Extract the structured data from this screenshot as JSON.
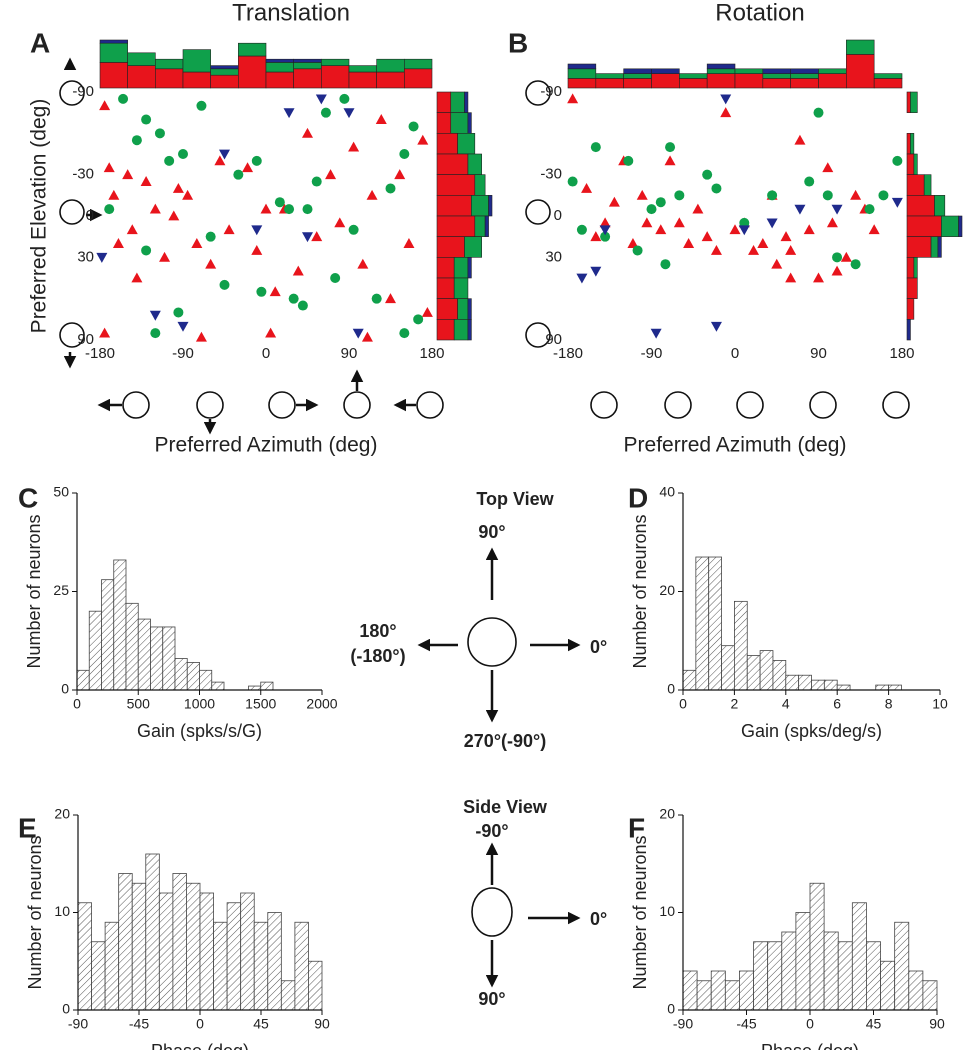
{
  "figure": {
    "top_view": {
      "title": "Top View",
      "labels": [
        "90°",
        "180°",
        "(-180°)",
        "0°",
        "270°(-90°)"
      ]
    },
    "side_view": {
      "title": "Side  View",
      "labels": [
        "-90°",
        "0°",
        "90°"
      ]
    }
  },
  "chart_data": [
    {
      "type": "scatter",
      "panel": "A",
      "title": "Translation",
      "xlabel": "Preferred Azimuth (deg)",
      "ylabel": "Preferred Elevation (deg)",
      "xlim": [
        -180,
        180
      ],
      "ylim": [
        90,
        -90
      ],
      "xticks": [
        -180,
        -90,
        0,
        90,
        180
      ],
      "yticks": [
        -90,
        -30,
        0,
        30,
        90
      ],
      "series": [
        {
          "color": "#e8141c",
          "marker": "triangle-up",
          "x": [
            -175,
            -170,
            -165,
            -160,
            -150,
            -145,
            -140,
            -130,
            -120,
            -110,
            -100,
            -95,
            -85,
            -75,
            -60,
            -50,
            -40,
            -20,
            -10,
            0,
            10,
            20,
            35,
            45,
            55,
            70,
            80,
            95,
            105,
            115,
            125,
            135,
            145,
            155,
            170,
            175,
            -175,
            -70,
            5,
            110
          ],
          "values": [
            -80,
            -35,
            -15,
            20,
            -30,
            10,
            45,
            -25,
            -5,
            30,
            0,
            -20,
            -15,
            20,
            35,
            -40,
            10,
            -35,
            25,
            -5,
            55,
            -5,
            40,
            -60,
            15,
            -30,
            5,
            -50,
            35,
            -15,
            -70,
            60,
            -30,
            20,
            -55,
            70,
            85,
            88,
            85,
            88
          ]
        },
        {
          "color": "#0fa04b",
          "marker": "circle",
          "x": [
            -155,
            -130,
            -115,
            -140,
            -170,
            -130,
            -105,
            -95,
            -90,
            -70,
            -60,
            -45,
            -30,
            -10,
            -5,
            15,
            25,
            30,
            45,
            55,
            65,
            75,
            85,
            95,
            120,
            135,
            150,
            160,
            165,
            150,
            -120,
            40
          ],
          "values": [
            -85,
            -70,
            -60,
            -55,
            -5,
            25,
            -40,
            70,
            -45,
            -80,
            15,
            50,
            -30,
            -40,
            55,
            -10,
            -5,
            60,
            -5,
            -25,
            -75,
            45,
            -85,
            10,
            60,
            -20,
            -45,
            -65,
            75,
            85,
            85,
            65
          ]
        },
        {
          "color": "#1f2a8c",
          "marker": "triangle-down",
          "x": [
            -178,
            -120,
            -90,
            -45,
            -10,
            25,
            45,
            60,
            90,
            100
          ],
          "values": [
            30,
            72,
            80,
            -45,
            10,
            -75,
            15,
            -85,
            -75,
            85
          ]
        }
      ],
      "top_histogram": {
        "bins": [
          -180,
          -150,
          -120,
          -90,
          -60,
          -30,
          0,
          30,
          60,
          90,
          120,
          150,
          180
        ],
        "series": [
          {
            "color": "#e8141c",
            "values": [
              8,
              7,
              6,
              5,
              4,
              10,
              5,
              6,
              7,
              5,
              5,
              6
            ]
          },
          {
            "color": "#0fa04b",
            "values": [
              6,
              4,
              3,
              7,
              2,
              4,
              3,
              2,
              2,
              2,
              4,
              3
            ]
          },
          {
            "color": "#1f2a8c",
            "values": [
              1,
              0,
              0,
              0,
              1,
              0,
              1,
              1,
              0,
              0,
              0,
              0
            ]
          }
        ]
      },
      "right_histogram": {
        "bins": [
          -90,
          -75,
          -60,
          -45,
          -30,
          -15,
          0,
          15,
          30,
          45,
          60,
          75,
          90
        ],
        "series": [
          {
            "color": "#e8141c",
            "values": [
              4,
              4,
              6,
              9,
              11,
              10,
              11,
              8,
              5,
              5,
              6,
              5
            ]
          },
          {
            "color": "#0fa04b",
            "values": [
              4,
              5,
              5,
              4,
              3,
              5,
              3,
              5,
              4,
              4,
              3,
              4
            ]
          },
          {
            "color": "#1f2a8c",
            "values": [
              1,
              1,
              0,
              0,
              0,
              1,
              1,
              0,
              1,
              0,
              1,
              1
            ]
          }
        ]
      }
    },
    {
      "type": "scatter",
      "panel": "B",
      "title": "Rotation",
      "xlabel": "Preferred Azimuth (deg)",
      "xlim": [
        -180,
        180
      ],
      "ylim": [
        90,
        -90
      ],
      "xticks": [
        -180,
        -90,
        0,
        90,
        180
      ],
      "yticks": [
        -90,
        -30,
        0,
        30,
        90
      ],
      "series": [
        {
          "color": "#e8141c",
          "marker": "triangle-up",
          "x": [
            -175,
            -160,
            -150,
            -140,
            -130,
            -120,
            -110,
            -100,
            -95,
            -80,
            -70,
            -60,
            -50,
            -40,
            -20,
            -10,
            0,
            10,
            20,
            30,
            40,
            45,
            55,
            60,
            70,
            80,
            90,
            100,
            105,
            110,
            120,
            130,
            140,
            150,
            60,
            -30
          ],
          "values": [
            -85,
            -20,
            15,
            5,
            -10,
            -40,
            20,
            -15,
            5,
            10,
            -40,
            5,
            20,
            -5,
            25,
            -75,
            10,
            5,
            25,
            20,
            -15,
            35,
            15,
            25,
            -55,
            10,
            45,
            -35,
            5,
            40,
            30,
            -15,
            -5,
            10,
            45,
            15
          ]
        },
        {
          "color": "#0fa04b",
          "marker": "circle",
          "x": [
            -175,
            -165,
            -150,
            -140,
            -115,
            -105,
            -90,
            -80,
            -75,
            -70,
            -60,
            -30,
            -20,
            10,
            40,
            80,
            90,
            100,
            130,
            145,
            160,
            175,
            110
          ],
          "values": [
            -25,
            10,
            -50,
            15,
            -40,
            25,
            -5,
            -10,
            35,
            -50,
            -15,
            -30,
            -20,
            5,
            -15,
            -25,
            -75,
            -15,
            35,
            -5,
            -15,
            -40,
            30
          ]
        },
        {
          "color": "#1f2a8c",
          "marker": "triangle-down",
          "x": [
            -165,
            -150,
            -140,
            -85,
            -10,
            -20,
            10,
            40,
            70,
            110,
            175
          ],
          "values": [
            45,
            40,
            10,
            85,
            -85,
            80,
            10,
            5,
            -5,
            -5,
            -10
          ]
        }
      ],
      "top_histogram": {
        "bins": [
          -180,
          -150,
          -120,
          -90,
          -60,
          -30,
          0,
          30,
          60,
          90,
          120,
          150,
          180
        ],
        "series": [
          {
            "color": "#e8141c",
            "values": [
              2,
              2,
              2,
              3,
              2,
              3,
              3,
              2,
              2,
              3,
              7,
              2
            ]
          },
          {
            "color": "#0fa04b",
            "values": [
              2,
              1,
              1,
              0,
              1,
              1,
              1,
              1,
              1,
              1,
              3,
              1
            ]
          },
          {
            "color": "#1f2a8c",
            "values": [
              1,
              0,
              1,
              1,
              0,
              1,
              0,
              1,
              1,
              0,
              0,
              0
            ]
          }
        ]
      },
      "right_histogram": {
        "bins": [
          -90,
          -75,
          -60,
          -45,
          -30,
          -15,
          0,
          15,
          30,
          45,
          60,
          75,
          90
        ],
        "series": [
          {
            "color": "#e8141c",
            "values": [
              1,
              0,
              1,
              2,
              5,
              8,
              10,
              7,
              2,
              3,
              2,
              0
            ]
          },
          {
            "color": "#0fa04b",
            "values": [
              2,
              0,
              1,
              1,
              2,
              3,
              5,
              2,
              1,
              0,
              0,
              0
            ]
          },
          {
            "color": "#1f2a8c",
            "values": [
              0,
              0,
              0,
              0,
              0,
              0,
              1,
              1,
              0,
              0,
              0,
              1
            ]
          }
        ]
      }
    },
    {
      "type": "histogram",
      "panel": "C",
      "xlabel": "Gain (spks/s/G)",
      "ylabel": "Number of neurons",
      "bins": [
        0,
        100,
        200,
        300,
        400,
        500,
        600,
        700,
        800,
        900,
        1000,
        1100,
        1200,
        1300,
        1400,
        1500,
        1600
      ],
      "values": [
        5,
        20,
        28,
        33,
        22,
        18,
        16,
        16,
        8,
        7,
        5,
        2,
        0,
        0,
        1,
        2
      ],
      "xlim": [
        0,
        2000
      ],
      "ylim": [
        0,
        50
      ],
      "xticks": [
        0,
        500,
        1000,
        1500,
        2000
      ],
      "yticks": [
        0,
        25,
        50
      ]
    },
    {
      "type": "histogram",
      "panel": "D",
      "xlabel": "Gain (spks/deg/s)",
      "ylabel": "Number of neurons",
      "bins": [
        0,
        0.5,
        1,
        1.5,
        2,
        2.5,
        3,
        3.5,
        4,
        4.5,
        5,
        5.5,
        6,
        6.5,
        7,
        7.5,
        8,
        8.5
      ],
      "values": [
        4,
        27,
        27,
        9,
        18,
        7,
        8,
        6,
        3,
        3,
        2,
        2,
        1,
        0,
        0,
        1,
        1
      ],
      "xlim": [
        0,
        10
      ],
      "ylim": [
        0,
        40
      ],
      "xticks": [
        0,
        2,
        4,
        6,
        8,
        10
      ],
      "yticks": [
        0,
        20,
        40
      ]
    },
    {
      "type": "histogram",
      "panel": "E",
      "xlabel": "Phase (deg)",
      "ylabel": "Number of neurons",
      "bins": [
        -90,
        -80,
        -70,
        -60,
        -50,
        -40,
        -30,
        -20,
        -10,
        0,
        10,
        20,
        30,
        40,
        50,
        60,
        70,
        80,
        90
      ],
      "values": [
        11,
        7,
        9,
        14,
        13,
        16,
        12,
        14,
        13,
        12,
        9,
        11,
        12,
        9,
        10,
        3,
        9,
        5
      ],
      "xlim": [
        -90,
        90
      ],
      "ylim": [
        0,
        20
      ],
      "xticks": [
        -90,
        -45,
        0,
        45,
        90
      ],
      "yticks": [
        0,
        10,
        20
      ]
    },
    {
      "type": "histogram",
      "panel": "F",
      "xlabel": "Phase (deg)",
      "ylabel": "Number of neurons",
      "bins": [
        -90,
        -80,
        -70,
        -60,
        -50,
        -40,
        -30,
        -20,
        -10,
        0,
        10,
        20,
        30,
        40,
        50,
        60,
        70,
        80,
        90
      ],
      "values": [
        4,
        3,
        4,
        3,
        4,
        7,
        7,
        8,
        10,
        13,
        8,
        7,
        11,
        7,
        5,
        9,
        4,
        3
      ],
      "xlim": [
        -90,
        90
      ],
      "ylim": [
        0,
        20
      ],
      "xticks": [
        -90,
        -45,
        0,
        45,
        90
      ],
      "yticks": [
        0,
        10,
        20
      ]
    }
  ]
}
